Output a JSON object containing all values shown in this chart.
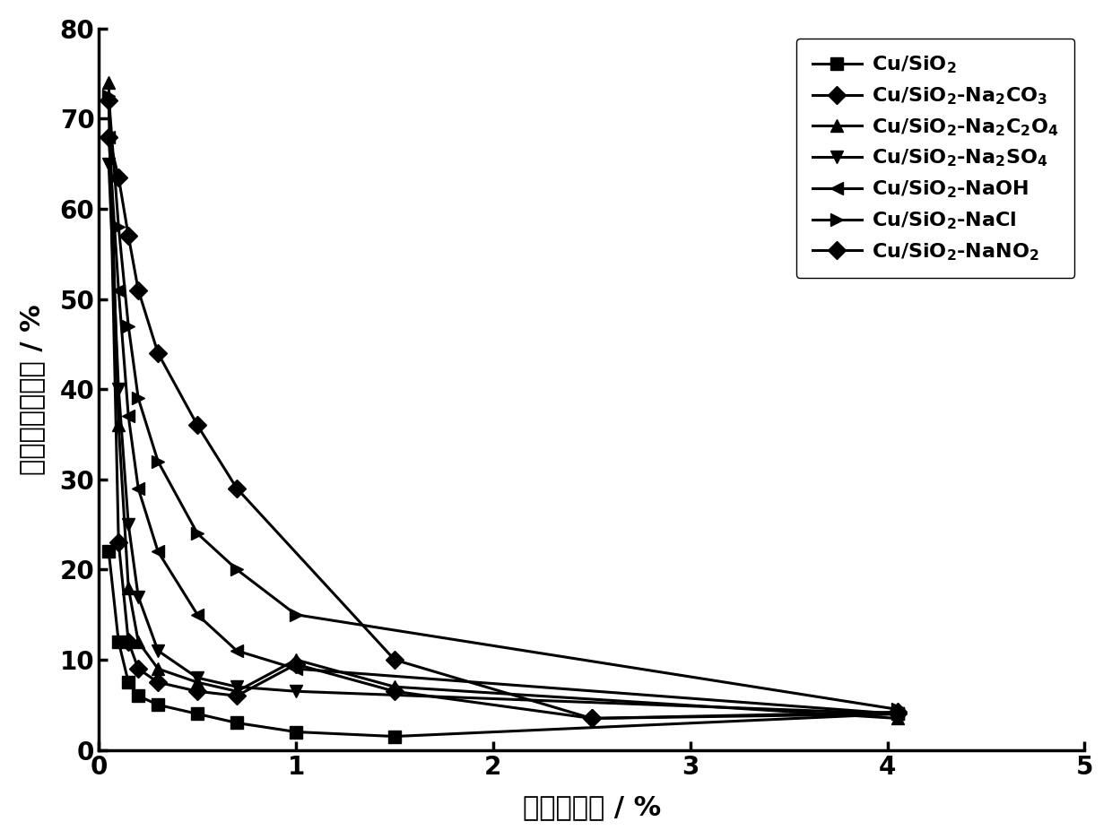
{
  "series": [
    {
      "label_en": "Cu/SiO$_2$",
      "marker": "s",
      "x": [
        0.05,
        0.1,
        0.15,
        0.2,
        0.3,
        0.5,
        0.7,
        1.0,
        1.5,
        4.05
      ],
      "y": [
        22.0,
        12.0,
        7.5,
        6.0,
        5.0,
        4.0,
        3.0,
        2.0,
        1.5,
        4.0
      ]
    },
    {
      "label_en": "Cu/SiO$_2$-Na$_2$CO$_3$",
      "marker": "D",
      "x": [
        0.05,
        0.1,
        0.15,
        0.2,
        0.3,
        0.5,
        0.7,
        1.0,
        1.5,
        2.5,
        4.05
      ],
      "y": [
        72.0,
        23.0,
        12.0,
        9.0,
        7.5,
        6.5,
        6.0,
        9.5,
        6.5,
        3.5,
        4.0
      ]
    },
    {
      "label_en": "Cu/SiO$_2$-Na$_2$C$_2$O$_4$",
      "marker": "^",
      "x": [
        0.05,
        0.1,
        0.15,
        0.2,
        0.3,
        0.5,
        0.7,
        1.0,
        1.5,
        4.05
      ],
      "y": [
        74.0,
        36.0,
        18.0,
        12.0,
        9.0,
        7.5,
        6.5,
        10.0,
        7.0,
        3.5
      ]
    },
    {
      "label_en": "Cu/SiO$_2$-Na$_2$SO$_4$",
      "marker": "v",
      "x": [
        0.05,
        0.1,
        0.15,
        0.2,
        0.3,
        0.5,
        0.7,
        1.0,
        4.05
      ],
      "y": [
        65.0,
        40.0,
        25.0,
        17.0,
        11.0,
        8.0,
        7.0,
        6.5,
        4.0
      ]
    },
    {
      "label_en": "Cu/SiO$_2$-NaOH",
      "marker": "<",
      "x": [
        0.05,
        0.1,
        0.15,
        0.2,
        0.3,
        0.5,
        0.7,
        1.0,
        4.05
      ],
      "y": [
        68.0,
        51.0,
        37.0,
        29.0,
        22.0,
        15.0,
        11.0,
        9.0,
        4.0
      ]
    },
    {
      "label_en": "Cu/SiO$_2$-NaCl",
      "marker": ">",
      "x": [
        0.05,
        0.1,
        0.15,
        0.2,
        0.3,
        0.5,
        0.7,
        1.0,
        4.05
      ],
      "y": [
        72.5,
        58.0,
        47.0,
        39.0,
        32.0,
        24.0,
        20.0,
        15.0,
        4.5
      ]
    },
    {
      "label_en": "Cu/SiO$_2$-NaNO$_2$",
      "marker": "D",
      "x": [
        0.05,
        0.1,
        0.15,
        0.2,
        0.3,
        0.5,
        0.7,
        1.5,
        2.5,
        4.05
      ],
      "y": [
        68.0,
        63.5,
        57.0,
        51.0,
        44.0,
        36.0,
        29.0,
        10.0,
        3.5,
        4.2
      ]
    }
  ],
  "xlabel_cn": "丙烯转化率 / %",
  "ylabel_cn": "环氧丙烷选择性 / %",
  "xlim": [
    0,
    5
  ],
  "ylim": [
    0,
    80
  ],
  "xticks": [
    0,
    1,
    2,
    3,
    4,
    5
  ],
  "yticks": [
    0,
    10,
    20,
    30,
    40,
    50,
    60,
    70,
    80
  ],
  "color": "#000000",
  "linewidth": 2.2,
  "markersize": 10
}
